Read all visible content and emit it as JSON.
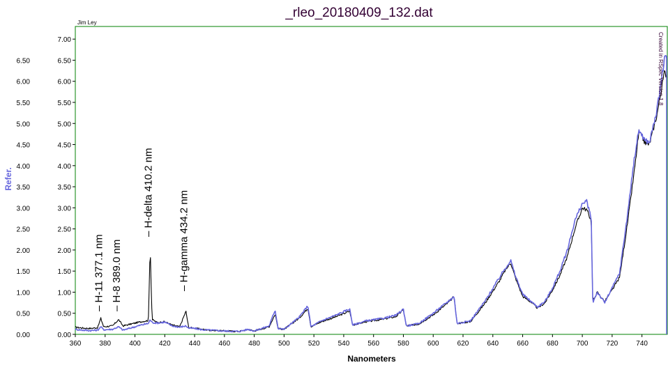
{
  "chart_data": {
    "type": "line",
    "title": "_rleo_20180409_132.dat",
    "author": "Jim Ley",
    "credit": "Created in RSpec Version 1.8",
    "xlabel": "Nanometers",
    "ylabel": "Refer.",
    "xlim": [
      360,
      757
    ],
    "ylim": [
      0,
      7.3
    ],
    "x_ticks": [
      "360",
      "380",
      "400",
      "420",
      "440",
      "460",
      "480",
      "500",
      "520",
      "540",
      "560",
      "580",
      "600",
      "620",
      "640",
      "660",
      "680",
      "700",
      "720",
      "740"
    ],
    "y_ticks_left": [
      "0.00",
      "0.50",
      "1.00",
      "1.50",
      "2.00",
      "2.50",
      "3.00",
      "3.50",
      "4.00",
      "4.50",
      "5.00",
      "5.50",
      "6.00",
      "6.50"
    ],
    "y_ticks_right": [
      "0.00",
      "0.50",
      "1.00",
      "1.50",
      "2.00",
      "2.50",
      "3.00",
      "3.50",
      "4.00",
      "4.50",
      "5.00",
      "5.50",
      "6.00",
      "6.50",
      "7.00"
    ],
    "annotations": [
      {
        "x": 377.1,
        "label": "H-11 377.1 nm"
      },
      {
        "x": 389.0,
        "label": "H-8 389.0 nm"
      },
      {
        "x": 410.2,
        "label": "H-delta 410.2 nm"
      },
      {
        "x": 434.2,
        "label": "H-gamma 434.2 nm"
      }
    ],
    "series": [
      {
        "name": "",
        "color": "#000000",
        "x": [
          360,
          365,
          370,
          375,
          377.1,
          379,
          385,
          389,
          392,
          398,
          404,
          409,
          410.2,
          411.5,
          415,
          420,
          425,
          430,
          434.2,
          436,
          440,
          445,
          450,
          460,
          470,
          476,
          480,
          490,
          494,
          496,
          500,
          510,
          516,
          518,
          525,
          535,
          544,
          546,
          555,
          565,
          575,
          580,
          582,
          590,
          600,
          610,
          614,
          616,
          625,
          635,
          645,
          648,
          652,
          655,
          660,
          665,
          670,
          675,
          680,
          685,
          690,
          695,
          700,
          703,
          706,
          707,
          710,
          715,
          720,
          725,
          730,
          735,
          738,
          742,
          745,
          750,
          755,
          757
        ],
        "y": [
          0.17,
          0.15,
          0.14,
          0.16,
          0.38,
          0.18,
          0.2,
          0.35,
          0.2,
          0.25,
          0.3,
          0.33,
          2.1,
          0.35,
          0.28,
          0.3,
          0.22,
          0.18,
          0.55,
          0.16,
          0.15,
          0.12,
          0.1,
          0.08,
          0.07,
          0.12,
          0.08,
          0.18,
          0.48,
          0.14,
          0.12,
          0.38,
          0.62,
          0.18,
          0.3,
          0.42,
          0.55,
          0.22,
          0.3,
          0.35,
          0.42,
          0.58,
          0.2,
          0.24,
          0.46,
          0.75,
          0.9,
          0.26,
          0.3,
          0.75,
          1.3,
          1.5,
          1.7,
          1.35,
          0.9,
          0.78,
          0.62,
          0.75,
          1.05,
          1.4,
          1.85,
          2.5,
          3.0,
          2.95,
          2.7,
          0.78,
          1.0,
          0.78,
          1.05,
          1.35,
          2.55,
          3.9,
          4.8,
          4.55,
          4.5,
          5.2,
          6.2,
          6.15
        ]
      },
      {
        "name": "",
        "color": "#6666dd",
        "x": [
          360,
          365,
          370,
          375,
          377.1,
          379,
          385,
          389,
          392,
          398,
          404,
          409,
          410.2,
          411.5,
          415,
          420,
          425,
          430,
          434.2,
          436,
          440,
          445,
          450,
          460,
          470,
          476,
          480,
          490,
          494,
          496,
          500,
          510,
          516,
          518,
          525,
          535,
          544,
          546,
          555,
          565,
          575,
          580,
          582,
          590,
          600,
          610,
          614,
          616,
          625,
          635,
          645,
          648,
          652,
          655,
          660,
          665,
          670,
          675,
          680,
          685,
          690,
          695,
          700,
          703,
          706,
          707,
          710,
          715,
          720,
          725,
          730,
          735,
          738,
          742,
          745,
          750,
          755,
          757
        ],
        "y": [
          0.12,
          0.1,
          0.09,
          0.1,
          0.18,
          0.11,
          0.12,
          0.18,
          0.1,
          0.16,
          0.22,
          0.26,
          0.35,
          0.28,
          0.27,
          0.29,
          0.2,
          0.17,
          0.2,
          0.15,
          0.14,
          0.11,
          0.1,
          0.08,
          0.07,
          0.12,
          0.08,
          0.2,
          0.58,
          0.14,
          0.12,
          0.4,
          0.68,
          0.18,
          0.32,
          0.46,
          0.6,
          0.22,
          0.32,
          0.37,
          0.45,
          0.6,
          0.2,
          0.25,
          0.5,
          0.78,
          0.9,
          0.26,
          0.32,
          0.8,
          1.38,
          1.55,
          1.75,
          1.4,
          0.95,
          0.8,
          0.65,
          0.78,
          1.1,
          1.5,
          2.0,
          2.7,
          3.1,
          3.15,
          2.75,
          0.75,
          1.0,
          0.75,
          1.1,
          1.45,
          2.75,
          4.2,
          4.85,
          4.6,
          4.55,
          5.3,
          6.5,
          6.6
        ]
      }
    ]
  }
}
